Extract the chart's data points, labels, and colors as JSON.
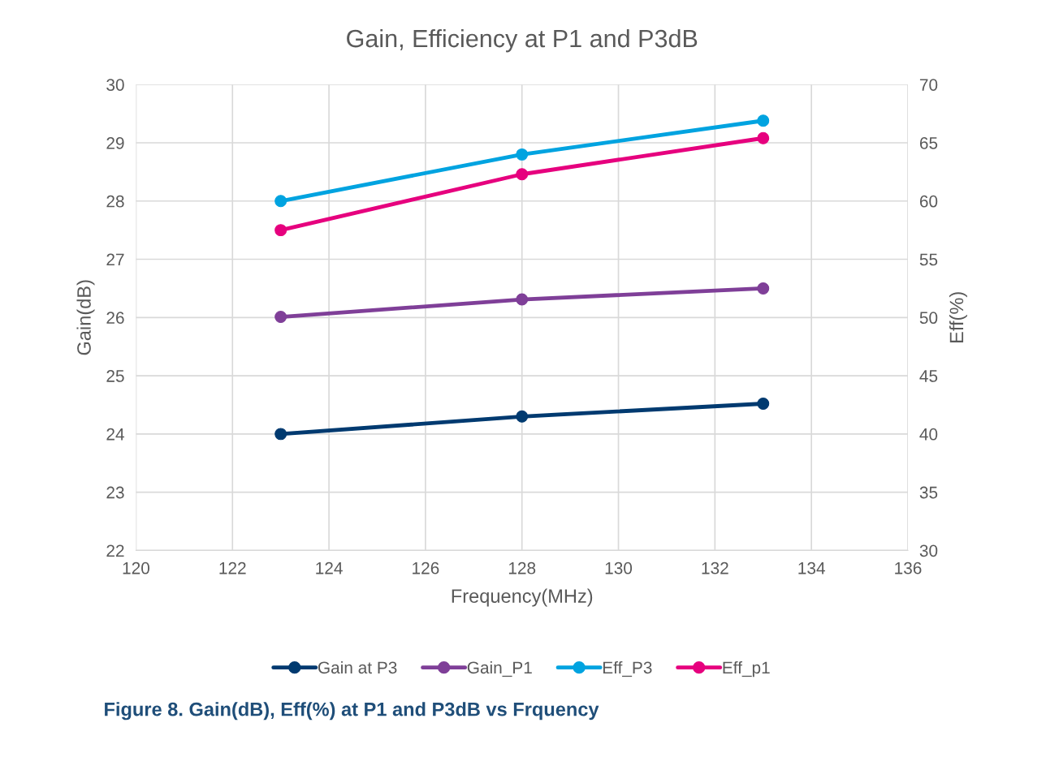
{
  "chart_data": {
    "type": "line",
    "title": "Gain, Efficiency at P1 and P3dB",
    "xlabel": "Frequency(MHz)",
    "ylabel": "Gain(dB)",
    "y2label": "Eff(%)",
    "x": [
      123,
      128,
      133
    ],
    "series": [
      {
        "name": "Gain at P3",
        "color": "#003a70",
        "values": [
          24.0,
          24.3,
          24.52
        ]
      },
      {
        "name": "Gain_P1",
        "color": "#7f3f98",
        "values": [
          26.01,
          26.31,
          26.5
        ]
      },
      {
        "name": "Eff_P3",
        "color": "#00a3e0",
        "values": [
          60.0,
          64.0,
          66.9
        ],
        "axis": "y2"
      },
      {
        "name": "Eff_p1",
        "color": "#e6007e",
        "values": [
          57.5,
          62.3,
          65.4
        ],
        "axis": "y2"
      }
    ],
    "xlim": [
      120,
      136
    ],
    "xticks": [
      120,
      122,
      124,
      126,
      128,
      130,
      132,
      134,
      136
    ],
    "ylim": [
      22,
      30
    ],
    "yticks": [
      22,
      23,
      24,
      25,
      26,
      27,
      28,
      29,
      30
    ],
    "y2lim": [
      30,
      70
    ],
    "y2ticks": [
      30,
      35,
      40,
      45,
      50,
      55,
      60,
      65,
      70
    ],
    "grid": true,
    "legend": "bottom",
    "marker": "circle",
    "line_style": "solid",
    "annotations": [
      "Figure 8. Gain(dB), Eff(%) at P1 and P3dB vs Frquency"
    ]
  }
}
